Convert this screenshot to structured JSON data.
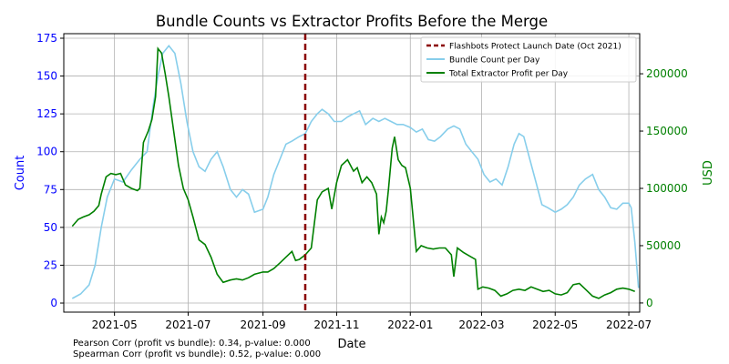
{
  "chart_data": {
    "type": "line",
    "title": "Bundle Counts vs Extractor Profits Before the Merge",
    "xlabel": "Date",
    "ylabel_left": "Count",
    "ylabel_right": "USD",
    "x_range": [
      "2021-03-20",
      "2022-07-10"
    ],
    "ylim_left": [
      -6,
      178
    ],
    "ylim_right": [
      -8000,
      235000
    ],
    "x_ticks": [
      "2021-05",
      "2021-07",
      "2021-09",
      "2021-11",
      "2022-01",
      "2022-03",
      "2022-05",
      "2022-07"
    ],
    "y_ticks_left": [
      0,
      25,
      50,
      75,
      100,
      125,
      150,
      175
    ],
    "y_ticks_right": [
      0,
      50000,
      100000,
      150000,
      200000
    ],
    "grid": true,
    "legend_position": "top-right",
    "colors": {
      "bundle": "#87ceeb",
      "profit": "#008000",
      "vline": "#8b0000",
      "left_axis": "#0000ff",
      "right_axis": "#008000"
    },
    "vline": {
      "x": "2021-10-06",
      "label": "Flashbots Protect Launch Date (Oct 2021)"
    },
    "series": [
      {
        "name": "Bundle Count per Day",
        "axis": "left",
        "points": [
          [
            "2021-03-27",
            3
          ],
          [
            "2021-04-03",
            6
          ],
          [
            "2021-04-10",
            12
          ],
          [
            "2021-04-15",
            25
          ],
          [
            "2021-04-20",
            50
          ],
          [
            "2021-04-25",
            70
          ],
          [
            "2021-05-01",
            82
          ],
          [
            "2021-05-08",
            80
          ],
          [
            "2021-05-15",
            88
          ],
          [
            "2021-05-22",
            95
          ],
          [
            "2021-05-28",
            100
          ],
          [
            "2021-06-02",
            130
          ],
          [
            "2021-06-06",
            150
          ],
          [
            "2021-06-10",
            165
          ],
          [
            "2021-06-15",
            170
          ],
          [
            "2021-06-20",
            165
          ],
          [
            "2021-06-25",
            145
          ],
          [
            "2021-06-30",
            120
          ],
          [
            "2021-07-05",
            100
          ],
          [
            "2021-07-10",
            90
          ],
          [
            "2021-07-15",
            87
          ],
          [
            "2021-07-20",
            95
          ],
          [
            "2021-07-25",
            100
          ],
          [
            "2021-07-30",
            90
          ],
          [
            "2021-08-05",
            75
          ],
          [
            "2021-08-10",
            70
          ],
          [
            "2021-08-15",
            75
          ],
          [
            "2021-08-20",
            72
          ],
          [
            "2021-08-25",
            60
          ],
          [
            "2021-09-01",
            62
          ],
          [
            "2021-09-05",
            70
          ],
          [
            "2021-09-10",
            85
          ],
          [
            "2021-09-15",
            95
          ],
          [
            "2021-09-20",
            105
          ],
          [
            "2021-09-25",
            107
          ],
          [
            "2021-10-01",
            110
          ],
          [
            "2021-10-06",
            112
          ],
          [
            "2021-10-11",
            120
          ],
          [
            "2021-10-16",
            125
          ],
          [
            "2021-10-20",
            128
          ],
          [
            "2021-10-25",
            125
          ],
          [
            "2021-10-30",
            120
          ],
          [
            "2021-11-05",
            120
          ],
          [
            "2021-11-10",
            123
          ],
          [
            "2021-11-15",
            125
          ],
          [
            "2021-11-20",
            127
          ],
          [
            "2021-11-25",
            118
          ],
          [
            "2021-12-01",
            122
          ],
          [
            "2021-12-06",
            120
          ],
          [
            "2021-12-11",
            122
          ],
          [
            "2021-12-16",
            120
          ],
          [
            "2021-12-21",
            118
          ],
          [
            "2021-12-26",
            118
          ],
          [
            "2022-01-01",
            116
          ],
          [
            "2022-01-06",
            113
          ],
          [
            "2022-01-11",
            115
          ],
          [
            "2022-01-16",
            108
          ],
          [
            "2022-01-21",
            107
          ],
          [
            "2022-01-26",
            110
          ],
          [
            "2022-02-01",
            115
          ],
          [
            "2022-02-06",
            117
          ],
          [
            "2022-02-11",
            115
          ],
          [
            "2022-02-16",
            105
          ],
          [
            "2022-02-21",
            100
          ],
          [
            "2022-02-26",
            95
          ],
          [
            "2022-03-03",
            85
          ],
          [
            "2022-03-08",
            80
          ],
          [
            "2022-03-13",
            82
          ],
          [
            "2022-03-18",
            78
          ],
          [
            "2022-03-23",
            90
          ],
          [
            "2022-03-28",
            105
          ],
          [
            "2022-04-01",
            112
          ],
          [
            "2022-04-05",
            110
          ],
          [
            "2022-04-10",
            95
          ],
          [
            "2022-04-15",
            80
          ],
          [
            "2022-04-20",
            65
          ],
          [
            "2022-04-25",
            63
          ],
          [
            "2022-05-01",
            60
          ],
          [
            "2022-05-06",
            62
          ],
          [
            "2022-05-11",
            65
          ],
          [
            "2022-05-16",
            70
          ],
          [
            "2022-05-21",
            78
          ],
          [
            "2022-05-26",
            82
          ],
          [
            "2022-06-01",
            85
          ],
          [
            "2022-06-06",
            75
          ],
          [
            "2022-06-11",
            70
          ],
          [
            "2022-06-16",
            63
          ],
          [
            "2022-06-21",
            62
          ],
          [
            "2022-06-26",
            66
          ],
          [
            "2022-07-01",
            66
          ],
          [
            "2022-07-03",
            63
          ],
          [
            "2022-07-06",
            40
          ],
          [
            "2022-07-09",
            10
          ]
        ]
      },
      {
        "name": "Total Extractor Profit per Day",
        "axis": "right",
        "points": [
          [
            "2021-03-27",
            67000
          ],
          [
            "2021-04-01",
            73000
          ],
          [
            "2021-04-05",
            75000
          ],
          [
            "2021-04-10",
            77000
          ],
          [
            "2021-04-14",
            80000
          ],
          [
            "2021-04-18",
            85000
          ],
          [
            "2021-04-20",
            95000
          ],
          [
            "2021-04-24",
            110000
          ],
          [
            "2021-04-28",
            113000
          ],
          [
            "2021-05-02",
            112000
          ],
          [
            "2021-05-06",
            113000
          ],
          [
            "2021-05-10",
            103000
          ],
          [
            "2021-05-15",
            100000
          ],
          [
            "2021-05-20",
            98000
          ],
          [
            "2021-05-22",
            100000
          ],
          [
            "2021-05-25",
            140000
          ],
          [
            "2021-05-29",
            150000
          ],
          [
            "2021-06-01",
            160000
          ],
          [
            "2021-06-04",
            180000
          ],
          [
            "2021-06-06",
            222000
          ],
          [
            "2021-06-09",
            218000
          ],
          [
            "2021-06-12",
            200000
          ],
          [
            "2021-06-15",
            180000
          ],
          [
            "2021-06-19",
            150000
          ],
          [
            "2021-06-23",
            120000
          ],
          [
            "2021-06-27",
            100000
          ],
          [
            "2021-07-01",
            90000
          ],
          [
            "2021-07-05",
            75000
          ],
          [
            "2021-07-10",
            55000
          ],
          [
            "2021-07-15",
            51000
          ],
          [
            "2021-07-20",
            40000
          ],
          [
            "2021-07-25",
            25000
          ],
          [
            "2021-07-30",
            18000
          ],
          [
            "2021-08-05",
            20000
          ],
          [
            "2021-08-10",
            21000
          ],
          [
            "2021-08-15",
            20000
          ],
          [
            "2021-08-20",
            22000
          ],
          [
            "2021-08-25",
            25000
          ],
          [
            "2021-09-01",
            27000
          ],
          [
            "2021-09-05",
            27000
          ],
          [
            "2021-09-10",
            30000
          ],
          [
            "2021-09-15",
            35000
          ],
          [
            "2021-09-20",
            40000
          ],
          [
            "2021-09-25",
            45000
          ],
          [
            "2021-09-28",
            37000
          ],
          [
            "2021-10-01",
            38000
          ],
          [
            "2021-10-06",
            42000
          ],
          [
            "2021-10-11",
            48000
          ],
          [
            "2021-10-16",
            90000
          ],
          [
            "2021-10-20",
            97000
          ],
          [
            "2021-10-25",
            100000
          ],
          [
            "2021-10-28",
            82000
          ],
          [
            "2021-11-01",
            105000
          ],
          [
            "2021-11-05",
            120000
          ],
          [
            "2021-11-10",
            125000
          ],
          [
            "2021-11-15",
            115000
          ],
          [
            "2021-11-18",
            118000
          ],
          [
            "2021-11-22",
            105000
          ],
          [
            "2021-11-26",
            110000
          ],
          [
            "2021-11-30",
            105000
          ],
          [
            "2021-12-02",
            100000
          ],
          [
            "2021-12-04",
            95000
          ],
          [
            "2021-12-06",
            60000
          ],
          [
            "2021-12-08",
            75000
          ],
          [
            "2021-12-10",
            70000
          ],
          [
            "2021-12-12",
            80000
          ],
          [
            "2021-12-14",
            100000
          ],
          [
            "2021-12-17",
            135000
          ],
          [
            "2021-12-19",
            145000
          ],
          [
            "2021-12-22",
            125000
          ],
          [
            "2021-12-25",
            120000
          ],
          [
            "2021-12-28",
            118000
          ],
          [
            "2022-01-01",
            100000
          ],
          [
            "2022-01-06",
            45000
          ],
          [
            "2022-01-10",
            50000
          ],
          [
            "2022-01-15",
            48000
          ],
          [
            "2022-01-20",
            47000
          ],
          [
            "2022-01-25",
            48000
          ],
          [
            "2022-01-30",
            48000
          ],
          [
            "2022-02-04",
            42000
          ],
          [
            "2022-02-06",
            23000
          ],
          [
            "2022-02-09",
            48000
          ],
          [
            "2022-02-14",
            44000
          ],
          [
            "2022-02-19",
            41000
          ],
          [
            "2022-02-24",
            38000
          ],
          [
            "2022-02-26",
            12000
          ],
          [
            "2022-03-02",
            14000
          ],
          [
            "2022-03-07",
            13000
          ],
          [
            "2022-03-12",
            11000
          ],
          [
            "2022-03-17",
            6000
          ],
          [
            "2022-03-22",
            8000
          ],
          [
            "2022-03-27",
            11000
          ],
          [
            "2022-04-01",
            12000
          ],
          [
            "2022-04-06",
            11000
          ],
          [
            "2022-04-11",
            14000
          ],
          [
            "2022-04-16",
            12000
          ],
          [
            "2022-04-21",
            10000
          ],
          [
            "2022-04-26",
            11000
          ],
          [
            "2022-05-01",
            8000
          ],
          [
            "2022-05-06",
            7000
          ],
          [
            "2022-05-11",
            9000
          ],
          [
            "2022-05-16",
            16000
          ],
          [
            "2022-05-21",
            17000
          ],
          [
            "2022-05-26",
            12000
          ],
          [
            "2022-06-01",
            6000
          ],
          [
            "2022-06-06",
            4000
          ],
          [
            "2022-06-11",
            7000
          ],
          [
            "2022-06-16",
            9000
          ],
          [
            "2022-06-21",
            12000
          ],
          [
            "2022-06-26",
            13000
          ],
          [
            "2022-07-01",
            12000
          ],
          [
            "2022-07-06",
            10000
          ]
        ]
      }
    ]
  },
  "footnotes": {
    "pearson": "Pearson Corr (profit vs bundle): 0.34, p-value: 0.000",
    "spearman": "Spearman Corr (profit vs bundle): 0.52, p-value: 0.000"
  }
}
